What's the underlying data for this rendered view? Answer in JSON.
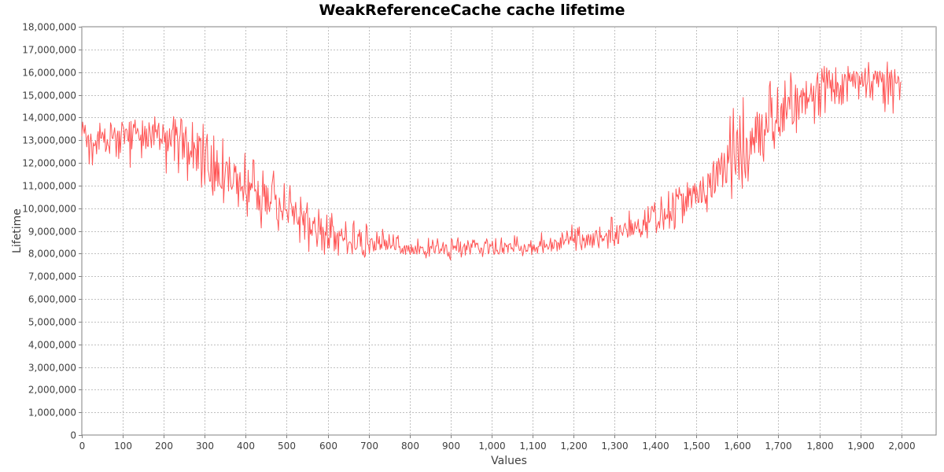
{
  "chart_data": {
    "type": "line",
    "title": "WeakReferenceCache cache lifetime",
    "xlabel": "Values",
    "ylabel": "Lifetime",
    "xlim": [
      0,
      2085
    ],
    "ylim": [
      0,
      18000000
    ],
    "x_ticks": [
      0,
      100,
      200,
      300,
      400,
      500,
      600,
      700,
      800,
      900,
      1000,
      1100,
      1200,
      1300,
      1400,
      1500,
      1600,
      1700,
      1800,
      1900,
      2000
    ],
    "x_tick_labels": [
      "0",
      "100",
      "200",
      "300",
      "400",
      "500",
      "600",
      "700",
      "800",
      "900",
      "1,000",
      "1,100",
      "1,200",
      "1,300",
      "1,400",
      "1,500",
      "1,600",
      "1,700",
      "1,800",
      "1,900",
      "2,000"
    ],
    "y_ticks": [
      0,
      1000000,
      2000000,
      3000000,
      4000000,
      5000000,
      6000000,
      7000000,
      8000000,
      9000000,
      10000000,
      11000000,
      12000000,
      13000000,
      14000000,
      15000000,
      16000000,
      17000000,
      18000000
    ],
    "y_tick_labels": [
      "0",
      "1,000,000",
      "2,000,000",
      "3,000,000",
      "4,000,000",
      "5,000,000",
      "6,000,000",
      "7,000,000",
      "8,000,000",
      "9,000,000",
      "10,000,000",
      "11,000,000",
      "12,000,000",
      "13,000,000",
      "14,000,000",
      "15,000,000",
      "16,000,000",
      "17,000,000",
      "18,000,000"
    ],
    "grid": true,
    "legend": "none",
    "series_color": "#ff5555",
    "series": [
      {
        "x": [
          0,
          50,
          100,
          150,
          200,
          250,
          300,
          350,
          400,
          450,
          500,
          550,
          600,
          650,
          700,
          750,
          800,
          850,
          900,
          950,
          1000,
          1050,
          1100,
          1150,
          1200,
          1250,
          1300,
          1350,
          1400,
          1450,
          1500,
          1550,
          1600,
          1650,
          1700,
          1750,
          1800,
          1850,
          1900,
          1950,
          2000
        ],
        "y": [
          12900000,
          13000000,
          13100000,
          13200000,
          13000000,
          12700000,
          12200000,
          11500000,
          11000000,
          10500000,
          9900000,
          9300000,
          8900000,
          8600000,
          8400000,
          8300000,
          8200000,
          8200000,
          8200000,
          8200000,
          8200000,
          8250000,
          8300000,
          8450000,
          8600000,
          8700000,
          8850000,
          9100000,
          9500000,
          10000000,
          10600000,
          11400000,
          12300000,
          13200000,
          14000000,
          14600000,
          15200000,
          15500000,
          15700000,
          15600000,
          15300000
        ],
        "y_min": [
          11800000,
          11700000,
          11800000,
          11800000,
          11500000,
          11000000,
          10500000,
          9800000,
          9300000,
          9000000,
          8600000,
          8100000,
          7900000,
          7800000,
          7700000,
          7700000,
          7700000,
          7700000,
          7700000,
          7800000,
          7800000,
          7850000,
          7900000,
          8000000,
          8100000,
          8150000,
          8250000,
          8450000,
          8700000,
          9000000,
          9400000,
          9900000,
          10600000,
          11500000,
          12600000,
          13200000,
          13800000,
          14400000,
          14500000,
          14300000,
          13800000
        ],
        "y_max": [
          13800000,
          13900000,
          13900000,
          14000000,
          14100000,
          14000000,
          13800000,
          13000000,
          12500000,
          12000000,
          11300000,
          10400000,
          9900000,
          9500000,
          9400000,
          9000000,
          8700000,
          8700000,
          8700000,
          8800000,
          8800000,
          8800000,
          8900000,
          9100000,
          9300000,
          9500000,
          9700000,
          10000000,
          10500000,
          11200000,
          12000000,
          13400000,
          14800000,
          15500000,
          15900000,
          16200000,
          16300000,
          16400000,
          16400000,
          16600000,
          16500000
        ]
      }
    ]
  }
}
